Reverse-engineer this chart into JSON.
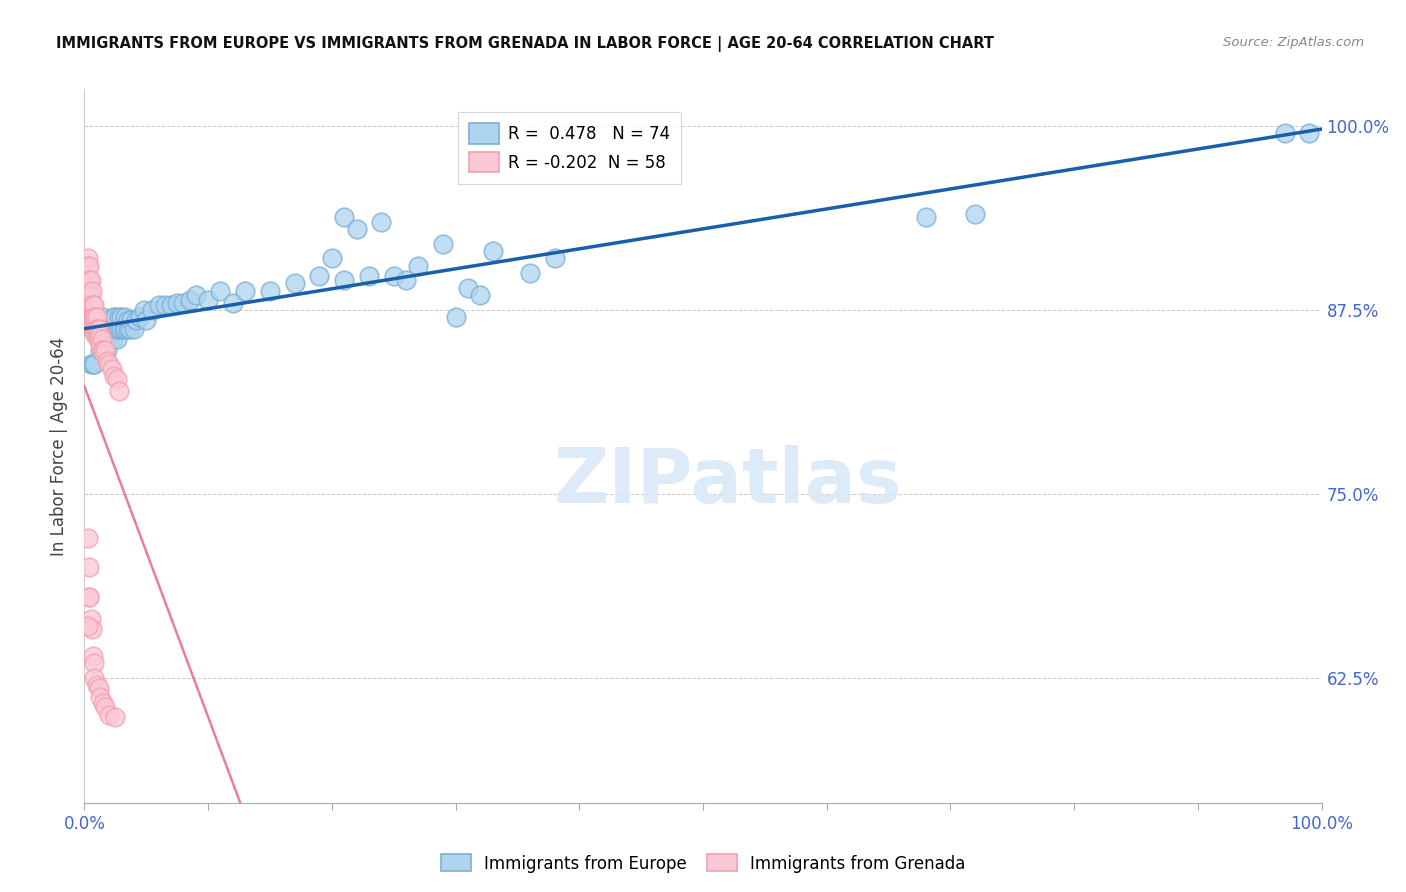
{
  "title": "IMMIGRANTS FROM EUROPE VS IMMIGRANTS FROM GRENADA IN LABOR FORCE | AGE 20-64 CORRELATION CHART",
  "source": "Source: ZipAtlas.com",
  "ylabel": "In Labor Force | Age 20-64",
  "r_europe": 0.478,
  "n_europe": 74,
  "r_grenada": -0.202,
  "n_grenada": 58,
  "blue_color": "#7BAFD4",
  "blue_fill": "#AED4F0",
  "pink_color": "#F4A0B0",
  "pink_fill": "#FAC8D4",
  "trend_blue": "#1A5FAB",
  "trend_pink": "#E8708A",
  "watermark": "ZIPatlas",
  "legend_labels": [
    "Immigrants from Europe",
    "Immigrants from Grenada"
  ],
  "ytick_vals": [
    0.625,
    0.75,
    0.875,
    1.0
  ],
  "ytick_labels": [
    "62.5%",
    "75.0%",
    "87.5%",
    "100.0%"
  ],
  "ymin": 0.54,
  "ymax": 1.025,
  "xmin": 0.0,
  "xmax": 1.0,
  "europe_x": [
    0.005,
    0.007,
    0.008,
    0.01,
    0.01,
    0.012,
    0.013,
    0.015,
    0.015,
    0.016,
    0.018,
    0.018,
    0.02,
    0.02,
    0.022,
    0.022,
    0.023,
    0.023,
    0.025,
    0.025,
    0.026,
    0.026,
    0.027,
    0.028,
    0.028,
    0.03,
    0.03,
    0.032,
    0.033,
    0.033,
    0.035,
    0.035,
    0.037,
    0.038,
    0.04,
    0.042,
    0.045,
    0.048,
    0.05,
    0.055,
    0.06,
    0.065,
    0.07,
    0.075,
    0.08,
    0.085,
    0.09,
    0.1,
    0.11,
    0.12,
    0.13,
    0.15,
    0.17,
    0.19,
    0.21,
    0.23,
    0.25,
    0.27,
    0.31,
    0.33,
    0.36,
    0.38,
    0.2,
    0.21,
    0.22,
    0.24,
    0.26,
    0.29,
    0.3,
    0.32,
    0.68,
    0.72,
    0.97,
    0.99
  ],
  "europe_y": [
    0.838,
    0.838,
    0.838,
    0.862,
    0.87,
    0.855,
    0.848,
    0.862,
    0.87,
    0.862,
    0.855,
    0.848,
    0.862,
    0.855,
    0.862,
    0.862,
    0.87,
    0.855,
    0.862,
    0.87,
    0.862,
    0.855,
    0.862,
    0.862,
    0.87,
    0.862,
    0.87,
    0.862,
    0.87,
    0.862,
    0.868,
    0.862,
    0.862,
    0.868,
    0.862,
    0.868,
    0.87,
    0.875,
    0.868,
    0.875,
    0.878,
    0.878,
    0.878,
    0.88,
    0.88,
    0.882,
    0.885,
    0.882,
    0.888,
    0.88,
    0.888,
    0.888,
    0.893,
    0.898,
    0.895,
    0.898,
    0.898,
    0.905,
    0.89,
    0.915,
    0.9,
    0.91,
    0.91,
    0.938,
    0.93,
    0.935,
    0.895,
    0.92,
    0.87,
    0.885,
    0.938,
    0.94,
    0.995,
    0.995
  ],
  "grenada_x": [
    0.003,
    0.003,
    0.003,
    0.004,
    0.004,
    0.004,
    0.005,
    0.005,
    0.006,
    0.006,
    0.006,
    0.006,
    0.007,
    0.007,
    0.007,
    0.008,
    0.008,
    0.008,
    0.009,
    0.009,
    0.009,
    0.01,
    0.01,
    0.01,
    0.011,
    0.011,
    0.012,
    0.012,
    0.013,
    0.013,
    0.014,
    0.014,
    0.015,
    0.016,
    0.017,
    0.018,
    0.02,
    0.022,
    0.024,
    0.026,
    0.028,
    0.003,
    0.004,
    0.004,
    0.005,
    0.006,
    0.007,
    0.008,
    0.008,
    0.01,
    0.012,
    0.013,
    0.015,
    0.017,
    0.02,
    0.025,
    0.003,
    0.004
  ],
  "grenada_y": [
    0.91,
    0.905,
    0.895,
    0.905,
    0.895,
    0.888,
    0.895,
    0.885,
    0.888,
    0.878,
    0.87,
    0.862,
    0.878,
    0.87,
    0.862,
    0.878,
    0.87,
    0.862,
    0.87,
    0.862,
    0.858,
    0.87,
    0.862,
    0.858,
    0.862,
    0.855,
    0.862,
    0.855,
    0.858,
    0.852,
    0.855,
    0.848,
    0.848,
    0.845,
    0.848,
    0.84,
    0.838,
    0.835,
    0.83,
    0.828,
    0.82,
    0.72,
    0.7,
    0.68,
    0.665,
    0.658,
    0.64,
    0.635,
    0.625,
    0.62,
    0.618,
    0.612,
    0.608,
    0.605,
    0.6,
    0.598,
    0.66,
    0.68
  ]
}
